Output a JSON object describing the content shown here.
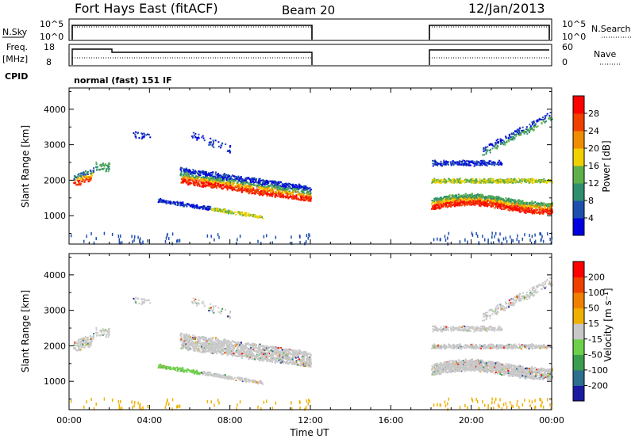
{
  "header": {
    "station": "Fort Hays East (fitACF)",
    "beam": "Beam 20",
    "date": "12/Jan/2013"
  },
  "top_panels": {
    "nsky_label": "N.Sky",
    "nsky_ticks": [
      "10^5",
      "10^0"
    ],
    "nsearch_label": "N.Search",
    "nsearch_ticks": [
      "10^5",
      "10^0"
    ],
    "freq_label": "Freq.",
    "freq_unit": "[MHz]",
    "freq_ticks": [
      "18",
      "8"
    ],
    "nave_label": "Nave",
    "nave_ticks": [
      "60",
      "0"
    ],
    "cpid_label": "CPID",
    "cpid_text": "normal (fast) 151 IF"
  },
  "chart_data": [
    {
      "type": "heatmap",
      "name": "power",
      "ylabel": "Slant Range [km]",
      "yticks": [
        "4000",
        "3000",
        "2000",
        "1000"
      ],
      "ylim": [
        200,
        4600
      ],
      "xlim": [
        0,
        24
      ],
      "colorbar_label": "Power [dB]",
      "colorbar_ticks": [
        "28",
        "24",
        "20",
        "16",
        "12",
        "8",
        "4"
      ],
      "colors": [
        "#0000e0",
        "#1e4fae",
        "#2e8f6e",
        "#5fb04a",
        "#f0d000",
        "#f08c00",
        "#f04000",
        "#ff0000"
      ]
    },
    {
      "type": "heatmap",
      "name": "velocity",
      "ylabel": "Slant Range [km]",
      "yticks": [
        "4000",
        "3000",
        "2000",
        "1000"
      ],
      "ylim": [
        200,
        4600
      ],
      "xlim": [
        0,
        24
      ],
      "xlabel": "Time UT",
      "xticks": [
        "00:00",
        "04:00",
        "08:00",
        "12:00",
        "16:00",
        "20:00",
        "00:00"
      ],
      "colorbar_label": "Velocity [m s⁻¹]",
      "colorbar_ticks": [
        "200",
        "100",
        "50",
        "15",
        "-15",
        "-50",
        "-100",
        "-200"
      ],
      "colors": [
        "#1a1aa0",
        "#2e6e8e",
        "#3a9e4e",
        "#6ed04a",
        "#c8c8c8",
        "#f0b000",
        "#f08000",
        "#f04000",
        "#ff0000"
      ]
    }
  ]
}
